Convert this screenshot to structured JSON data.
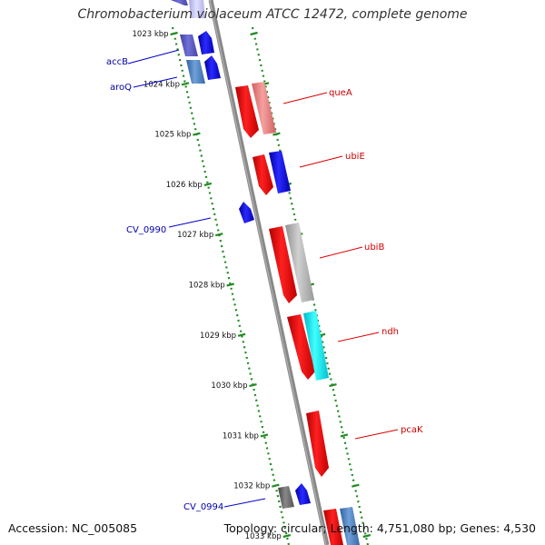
{
  "title": "Chromobacterium violaceum ATCC 12472, complete genome",
  "footer": {
    "accession": "Accession: NC_005085",
    "topology": "Topology: circular; Length: 4,751,080 bp; Genes: 4,530"
  },
  "colors": {
    "forward_strand": "#ff0000",
    "reverse_strand": "#0000ee",
    "backbone": "#808080",
    "tick": "#228b22"
  },
  "kbp_labels": [
    "1023 kbp",
    "1024 kbp",
    "1025 kbp",
    "1026 kbp",
    "1027 kbp",
    "1028 kbp",
    "1029 kbp",
    "1030 kbp",
    "1031 kbp",
    "1032 kbp",
    "1033 kbp"
  ],
  "genes": [
    {
      "label": "accB",
      "color": "#5555cc"
    },
    {
      "label": "aroQ",
      "color": "#4488cc"
    },
    {
      "label": "queA",
      "color": "#ff0000"
    },
    {
      "label": "ubiE",
      "color": "#ff0000"
    },
    {
      "label": "CV_0990",
      "color": "#0000ee"
    },
    {
      "label": "ubiB",
      "color": "#ff0000"
    },
    {
      "label": "ndh",
      "color": "#ff0000"
    },
    {
      "label": "pcaK",
      "color": "#ff0000"
    },
    {
      "label": "CV_0994",
      "color": "#0000ee"
    }
  ]
}
